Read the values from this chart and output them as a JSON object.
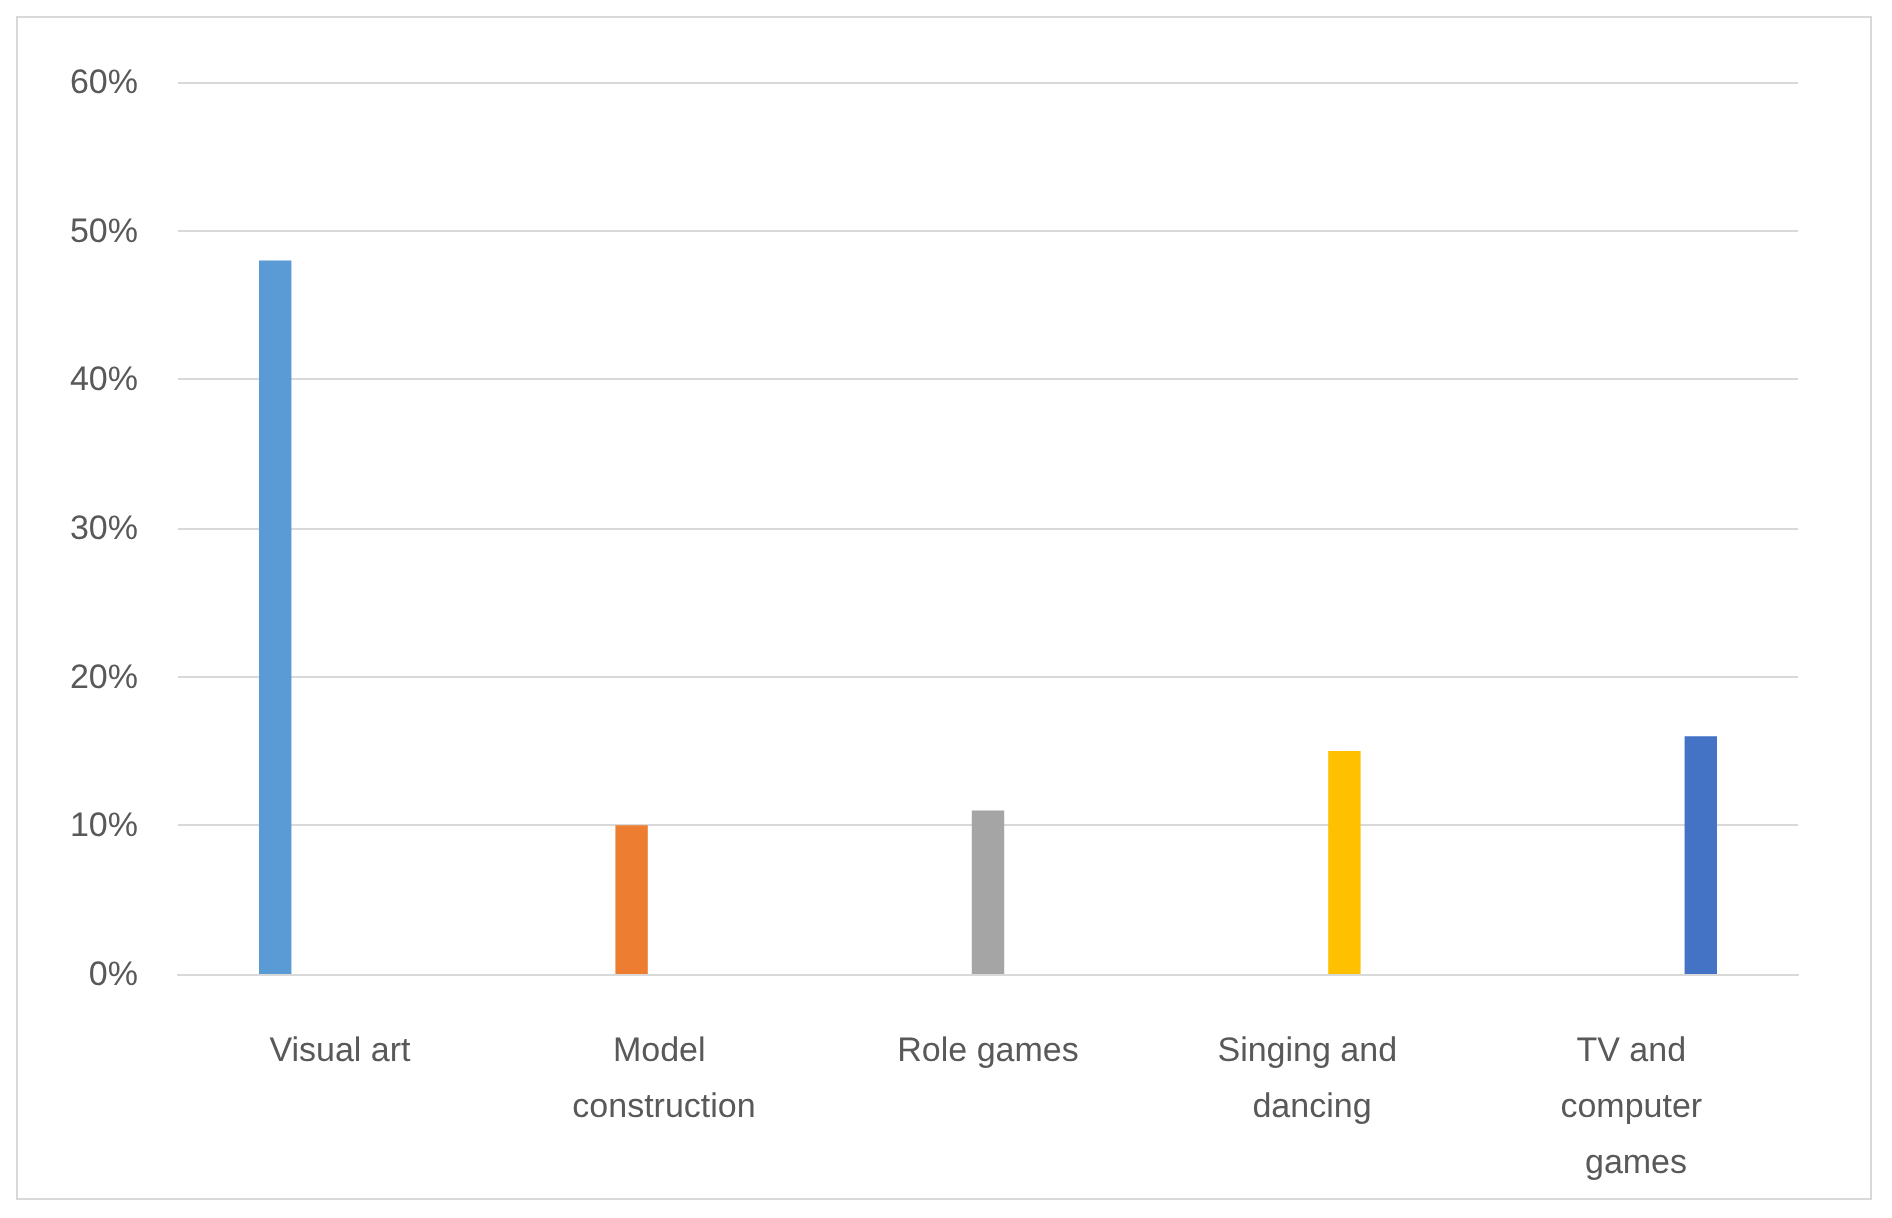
{
  "chart_data": {
    "type": "bar",
    "categories": [
      "Visual art",
      "Model construction",
      "Role games",
      "Singing and dancing",
      "TV and computer games"
    ],
    "series": [
      {
        "color": "#5b9bd5",
        "values": [
          48,
          null,
          null,
          null,
          null
        ]
      },
      {
        "color": "#ed7d31",
        "values": [
          null,
          10,
          null,
          null,
          null
        ]
      },
      {
        "color": "#a5a5a5",
        "values": [
          null,
          null,
          11,
          null,
          null
        ]
      },
      {
        "color": "#ffc000",
        "values": [
          null,
          null,
          null,
          15,
          null
        ]
      },
      {
        "color": "#4472c4",
        "values": [
          null,
          null,
          null,
          null,
          16
        ]
      }
    ],
    "ylim": [
      0,
      60
    ],
    "yticks": [
      {
        "value": 0,
        "label": "0%"
      },
      {
        "value": 10,
        "label": "10%"
      },
      {
        "value": 20,
        "label": "20%"
      },
      {
        "value": 30,
        "label": "30%"
      },
      {
        "value": 40,
        "label": "40%"
      },
      {
        "value": 50,
        "label": "50%"
      },
      {
        "value": 60,
        "label": "60%"
      }
    ],
    "grid": "y"
  }
}
